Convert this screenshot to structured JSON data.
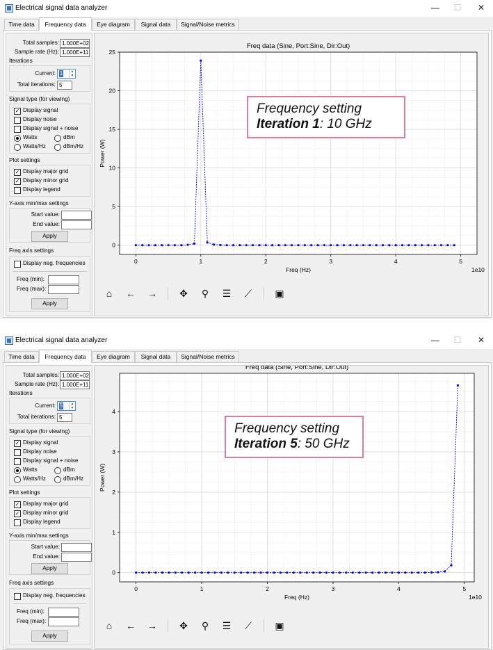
{
  "app": {
    "title": "Electrical signal data analyzer",
    "win_min": "—",
    "win_max": "☐",
    "win_close": "✕"
  },
  "tabs": [
    "Time data",
    "Frequency data",
    "Eye diagram",
    "Signal data",
    "Signal/Noise metrics"
  ],
  "left_panel": {
    "total_samples_label": "Total samples:",
    "total_samples_value": "1.000E+02",
    "sample_rate_label": "Sample rate (Hz):",
    "sample_rate_value": "1.000E+11",
    "iterations_title": "Iterations",
    "current_label": "Current:",
    "total_iterations_label": "Total iterations:",
    "total_iterations_value": "5",
    "signal_type_title": "Signal type (for viewing)",
    "display_signal": "Display signal",
    "display_noise": "Display noise",
    "display_signal_noise": "Display signal + noise",
    "watts": "Watts",
    "dbm": "dBm",
    "watts_hz": "Watts/Hz",
    "dbm_hz": "dBm/Hz",
    "plot_settings_title": "Plot settings",
    "display_major_grid": "Display major grid",
    "display_minor_grid": "Display minor grid",
    "display_legend": "Display legend",
    "yaxis_title": "Y-axis min/max settings",
    "start_value_label": "Start value:",
    "end_value_label": "End value:",
    "apply": "Apply",
    "freq_axis_title": "Freq axis settings",
    "display_neg_freq": "Display neg. frequencies",
    "freq_min_label": "Freq (min):",
    "freq_max_label": "Freq (max):"
  },
  "toolbar_icons": [
    "home-icon",
    "back-arrow-icon",
    "forward-arrow-icon",
    "pan-icon",
    "zoom-icon",
    "configure-subplots-icon",
    "edit-axis-icon",
    "save-icon"
  ],
  "windows": [
    {
      "current_iteration": "1",
      "annotation": {
        "line1": "Frequency setting",
        "line2_bold": "Iteration 1",
        "line2_rest": ": 10 GHz"
      },
      "chart_data": {
        "type": "line",
        "title": "Freq data (Sine, Port:Sine, Dir:Out)",
        "xlabel": "Freq (Hz)",
        "ylabel": "Power (W)",
        "x_offset_text": "1e10",
        "xlim": [
          -0.25,
          5.25
        ],
        "ylim": [
          -1.2,
          25
        ],
        "xticks": [
          0,
          1,
          2,
          3,
          4,
          5
        ],
        "yticks": [
          0,
          5,
          10,
          15,
          20,
          25
        ],
        "grid": true,
        "color": "#0000ff",
        "x": [
          0,
          0.1,
          0.2,
          0.3,
          0.4,
          0.5,
          0.6,
          0.7,
          0.8,
          0.9,
          1.0,
          1.1,
          1.2,
          1.3,
          1.4,
          1.5,
          1.6,
          1.7,
          1.8,
          1.9,
          2.0,
          2.1,
          2.2,
          2.3,
          2.4,
          2.5,
          2.6,
          2.7,
          2.8,
          2.9,
          3.0,
          3.1,
          3.2,
          3.3,
          3.4,
          3.5,
          3.6,
          3.7,
          3.8,
          3.9,
          4.0,
          4.1,
          4.2,
          4.3,
          4.4,
          4.5,
          4.6,
          4.7,
          4.8,
          4.9
        ],
        "y": [
          0,
          0,
          0,
          0,
          0,
          0,
          0,
          0,
          0.05,
          0.2,
          23.9,
          0.35,
          0.08,
          0.02,
          0,
          0,
          0,
          0,
          0,
          0,
          0,
          0,
          0,
          0,
          0,
          0,
          0,
          0,
          0,
          0,
          0,
          0,
          0,
          0,
          0,
          0,
          0,
          0,
          0,
          0,
          0,
          0,
          0,
          0,
          0,
          0,
          0,
          0,
          0,
          0
        ]
      }
    },
    {
      "current_iteration": "5",
      "annotation": {
        "line1": "Frequency setting",
        "line2_bold": "Iteration 5",
        "line2_rest": ": 50 GHz"
      },
      "chart_data": {
        "type": "line",
        "title": "Freq data (Sine, Port:Sine, Dir:Out)",
        "xlabel": "Freq (Hz)",
        "ylabel": "Power (W)",
        "x_offset_text": "1e10",
        "xlim": [
          -0.25,
          5.15
        ],
        "ylim": [
          -0.23,
          4.95
        ],
        "xticks": [
          0,
          1,
          2,
          3,
          4,
          5
        ],
        "yticks": [
          0,
          1,
          2,
          3,
          4
        ],
        "grid": true,
        "color": "#0000ff",
        "x": [
          0,
          0.1,
          0.2,
          0.3,
          0.4,
          0.5,
          0.6,
          0.7,
          0.8,
          0.9,
          1.0,
          1.1,
          1.2,
          1.3,
          1.4,
          1.5,
          1.6,
          1.7,
          1.8,
          1.9,
          2.0,
          2.1,
          2.2,
          2.3,
          2.4,
          2.5,
          2.6,
          2.7,
          2.8,
          2.9,
          3.0,
          3.1,
          3.2,
          3.3,
          3.4,
          3.5,
          3.6,
          3.7,
          3.8,
          3.9,
          4.0,
          4.1,
          4.2,
          4.3,
          4.4,
          4.5,
          4.6,
          4.7,
          4.8,
          4.9
        ],
        "y": [
          0,
          0,
          0,
          0,
          0,
          0,
          0,
          0,
          0,
          0,
          0,
          0,
          0,
          0,
          0,
          0,
          0,
          0,
          0,
          0,
          0,
          0,
          0,
          0,
          0,
          0,
          0,
          0,
          0,
          0,
          0,
          0,
          0,
          0,
          0,
          0,
          0,
          0,
          0,
          0,
          0,
          0,
          0,
          0,
          0,
          0.005,
          0.01,
          0.03,
          0.18,
          4.65
        ]
      }
    }
  ]
}
